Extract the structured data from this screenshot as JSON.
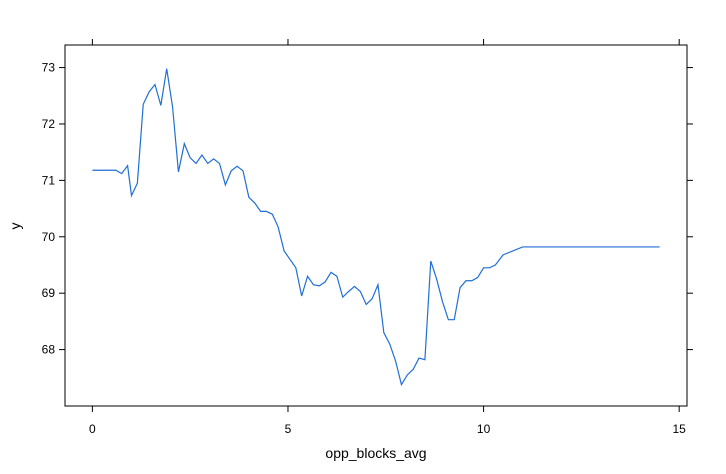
{
  "chart_data": {
    "type": "line",
    "title": "",
    "xlabel": "opp_blocks_avg",
    "ylabel": "y",
    "xlim": [
      -0.7,
      15.2
    ],
    "ylim": [
      67.0,
      73.4
    ],
    "xticks": [
      0,
      5,
      10,
      15
    ],
    "yticks": [
      68,
      69,
      70,
      71,
      72,
      73
    ],
    "grid": false,
    "legend": "none",
    "line_color": "#1f6fd6",
    "series": [
      {
        "x": [
          0.0,
          0.2,
          0.4,
          0.6,
          0.75,
          0.9,
          1.0,
          1.15,
          1.3,
          1.45,
          1.6,
          1.75,
          1.9,
          2.05,
          2.2,
          2.35,
          2.5,
          2.65,
          2.8,
          2.95,
          3.1,
          3.25,
          3.4,
          3.55,
          3.7,
          3.85,
          4.0,
          4.15,
          4.3,
          4.45,
          4.6,
          4.75,
          4.9,
          5.05,
          5.2,
          5.35,
          5.5,
          5.65,
          5.8,
          5.95,
          6.1,
          6.25,
          6.4,
          6.55,
          6.7,
          6.85,
          7.0,
          7.15,
          7.3,
          7.45,
          7.6,
          7.75,
          7.9,
          8.05,
          8.2,
          8.35,
          8.5,
          8.65,
          8.8,
          8.95,
          9.1,
          9.25,
          9.4,
          9.55,
          9.7,
          9.85,
          10.0,
          10.15,
          10.3,
          10.5,
          11.0,
          12.0,
          13.0,
          14.5
        ],
        "y": [
          71.18,
          71.18,
          71.18,
          71.18,
          71.12,
          71.26,
          70.73,
          70.95,
          72.35,
          72.57,
          72.7,
          72.33,
          72.98,
          72.3,
          71.15,
          71.65,
          71.4,
          71.3,
          71.45,
          71.3,
          71.38,
          71.3,
          70.92,
          71.17,
          71.25,
          71.17,
          70.7,
          70.6,
          70.45,
          70.45,
          70.4,
          70.17,
          69.75,
          69.6,
          69.45,
          68.95,
          69.3,
          69.15,
          69.13,
          69.2,
          69.37,
          69.3,
          68.93,
          69.03,
          69.12,
          69.03,
          68.8,
          68.9,
          69.15,
          68.3,
          68.1,
          67.8,
          67.38,
          67.55,
          67.65,
          67.85,
          67.82,
          69.57,
          69.25,
          68.85,
          68.53,
          68.53,
          69.1,
          69.22,
          69.22,
          69.28,
          69.45,
          69.45,
          69.5,
          69.68,
          69.82,
          69.82,
          69.82,
          69.82
        ]
      }
    ]
  }
}
